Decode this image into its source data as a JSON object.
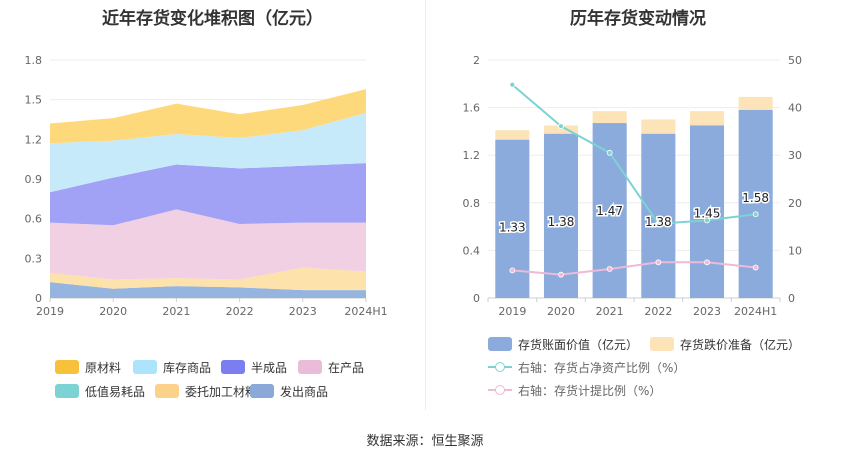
{
  "chart_data": [
    {
      "type": "area",
      "stacked": true,
      "title": "近年存货变化堆积图（亿元）",
      "categories": [
        "2019",
        "2020",
        "2021",
        "2022",
        "2023",
        "2024H1"
      ],
      "ylim": [
        0,
        1.8
      ],
      "yticks": [
        "0",
        "0.3",
        "0.6",
        "0.9",
        "1.2",
        "1.5",
        "1.8"
      ],
      "series": [
        {
          "name": "发出商品",
          "color": "#8fb0dd",
          "values": [
            0.12,
            0.07,
            0.09,
            0.08,
            0.06,
            0.06
          ]
        },
        {
          "name": "委托加工材料",
          "color": "#fde0a6",
          "values": [
            0.07,
            0.07,
            0.06,
            0.06,
            0.17,
            0.14
          ]
        },
        {
          "name": "低值易耗品",
          "color": "#7dd3d3",
          "values": [
            0.0,
            0.0,
            0.0,
            0.0,
            0.0,
            0.0
          ]
        },
        {
          "name": "在产品",
          "color": "#f0cde3",
          "values": [
            0.38,
            0.41,
            0.52,
            0.42,
            0.34,
            0.37
          ]
        },
        {
          "name": "半成品",
          "color": "#9c9cf5",
          "values": [
            0.23,
            0.36,
            0.34,
            0.42,
            0.43,
            0.45
          ]
        },
        {
          "name": "库存商品",
          "color": "#c4e9fb",
          "values": [
            0.37,
            0.28,
            0.23,
            0.23,
            0.27,
            0.38
          ]
        },
        {
          "name": "原材料",
          "color": "#fdd774",
          "values": [
            0.15,
            0.17,
            0.23,
            0.18,
            0.19,
            0.18
          ]
        }
      ],
      "legend": [
        {
          "name": "原材料",
          "color": "#f8c13a"
        },
        {
          "name": "库存商品",
          "color": "#ace4fb"
        },
        {
          "name": "半成品",
          "color": "#7d7df2"
        },
        {
          "name": "在产品",
          "color": "#ebbcd9"
        },
        {
          "name": "低值易耗品",
          "color": "#7dd3d3"
        },
        {
          "name": "委托加工材料",
          "color": "#fcd28b"
        },
        {
          "name": "发出商品",
          "color": "#8aa8d8"
        }
      ]
    },
    {
      "type": "bar",
      "title": "历年存货变动情况",
      "categories": [
        "2019",
        "2020",
        "2021",
        "2022",
        "2023",
        "2024H1"
      ],
      "ylim": [
        0,
        2
      ],
      "yticks": [
        "0",
        "0.4",
        "0.8",
        "1.2",
        "1.6",
        "2"
      ],
      "y2lim": [
        0,
        50
      ],
      "y2ticks": [
        "0",
        "10",
        "20",
        "30",
        "40",
        "50"
      ],
      "bar_values": [
        1.33,
        1.38,
        1.47,
        1.38,
        1.45,
        1.58
      ],
      "bar_labels": [
        "1.33",
        "1.38",
        "1.47",
        "1.38",
        "1.45",
        "1.58"
      ],
      "reserve_values": [
        0.08,
        0.07,
        0.1,
        0.12,
        0.12,
        0.11
      ],
      "ratio_net_assets": [
        44.8,
        36.1,
        30.5,
        15.6,
        16.3,
        17.6
      ],
      "ratio_provision": [
        5.8,
        4.9,
        6.1,
        7.5,
        7.5,
        6.4
      ],
      "colors": {
        "bar": "#8aabdb",
        "reserve": "#fde3b8",
        "line1": "#7dd3d3",
        "line2": "#eebad7"
      },
      "legend": [
        {
          "name": "存货账面价值（亿元）",
          "kind": "bar",
          "color": "#8aabdb"
        },
        {
          "name": "存货跌价准备（亿元）",
          "kind": "bar",
          "color": "#fde3b8"
        },
        {
          "name": "右轴：存货占净资产比例（%）",
          "kind": "line",
          "color": "#7dd3d3"
        },
        {
          "name": "右轴：存货计提比例（%）",
          "kind": "line",
          "color": "#eebad7"
        }
      ]
    }
  ],
  "source": "数据来源：恒生聚源"
}
